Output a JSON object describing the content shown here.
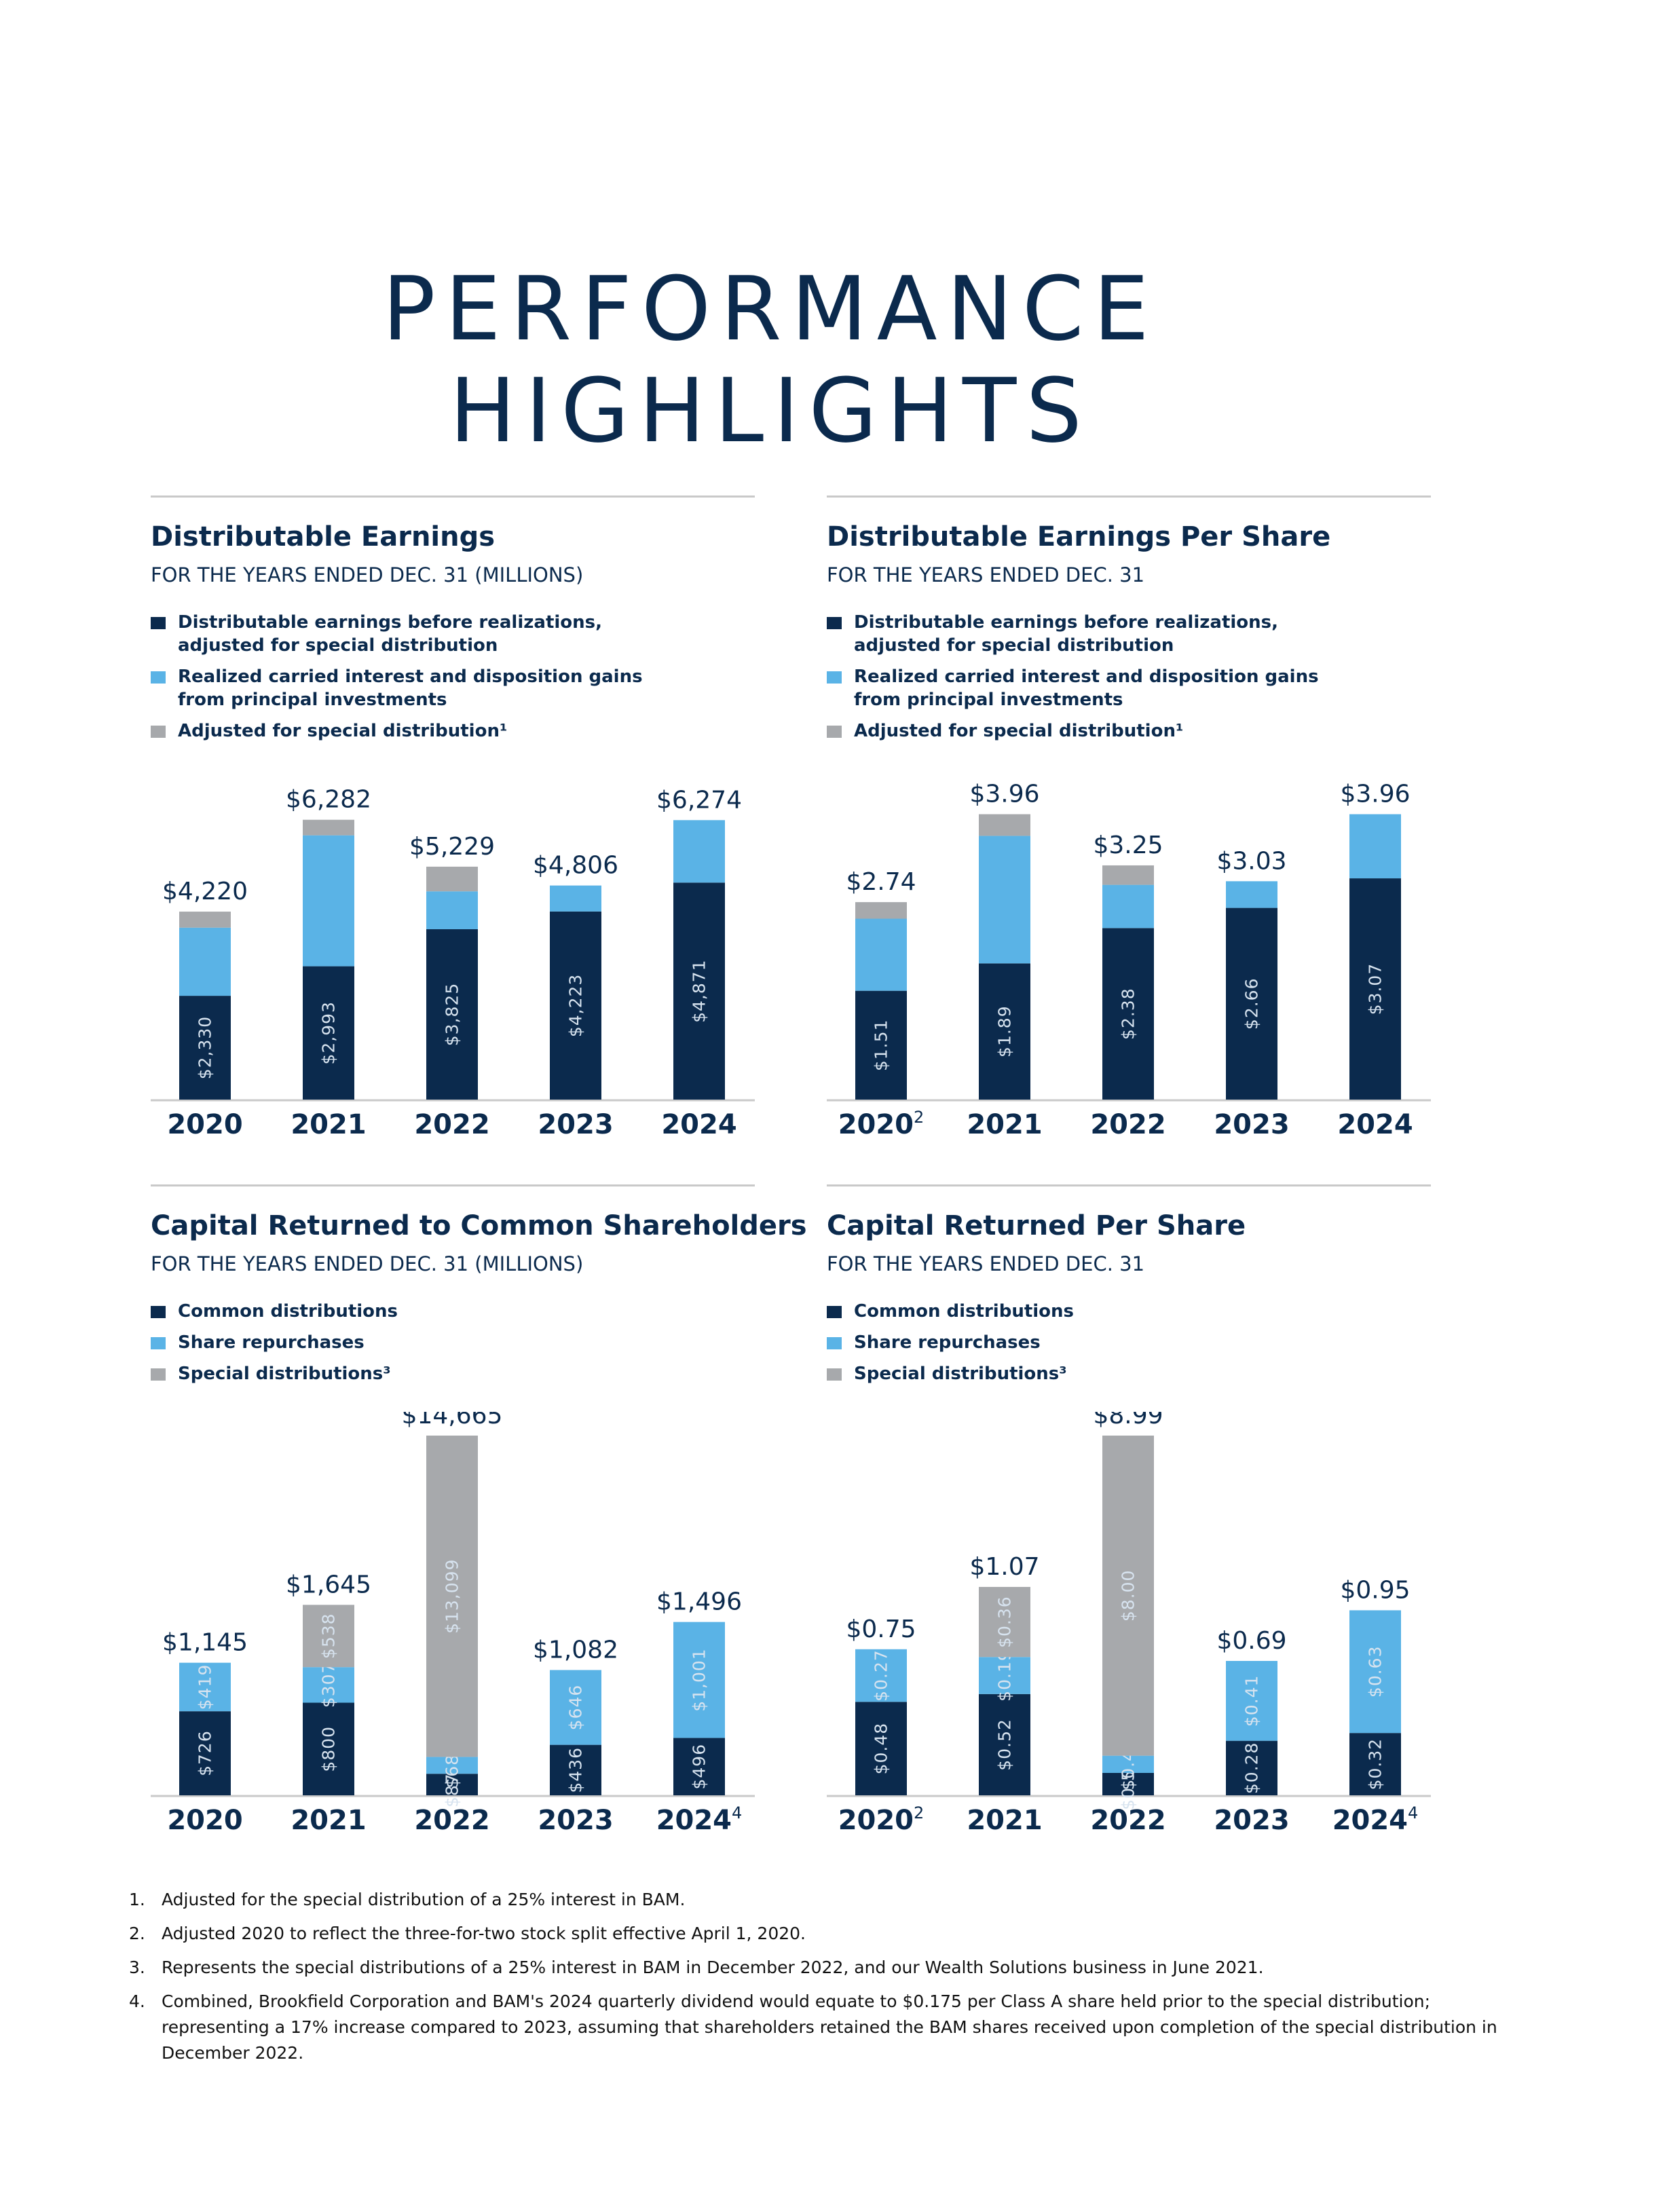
{
  "page": {
    "title_line1": "PERFORMANCE",
    "title_line2": "HIGHLIGHTS"
  },
  "colors": {
    "navy": "#0b2a4d",
    "light_blue": "#5ab3e6",
    "gray": "#a7a9ac",
    "rule": "#c9c9c9"
  },
  "chart_data": [
    {
      "type": "bar",
      "stacked": true,
      "title": "Distributable Earnings",
      "subtitle": "FOR THE YEARS ENDED DEC. 31 (MILLIONS)",
      "legend": [
        {
          "label": "Distributable earnings before realizations, adjusted for special distribution",
          "color": "#0b2a4d"
        },
        {
          "label": "Realized carried interest and disposition gains from principal investments",
          "color": "#5ab3e6"
        },
        {
          "label": "Adjusted for special distribution¹",
          "color": "#a7a9ac"
        }
      ],
      "categories": [
        "2020",
        "2021",
        "2022",
        "2023",
        "2024"
      ],
      "category_sup": [
        "",
        "",
        "",
        "",
        ""
      ],
      "series": [
        {
          "name": "Distributable earnings before realizations, adjusted for special distribution",
          "color": "#0b2a4d",
          "values": [
            2330,
            2993,
            3825,
            4223,
            4871
          ],
          "labels": [
            "$2,330",
            "$2,993",
            "$3,825",
            "$4,223",
            "$4,871"
          ]
        },
        {
          "name": "Realized carried interest and disposition gains from principal investments",
          "color": "#5ab3e6",
          "values": [
            1530,
            2940,
            850,
            583,
            1403
          ],
          "labels": [
            "",
            "",
            "",
            "",
            ""
          ]
        },
        {
          "name": "Adjusted for special distribution¹",
          "color": "#a7a9ac",
          "values": [
            360,
            349,
            554,
            0,
            0
          ],
          "labels": [
            "",
            "",
            "",
            "",
            ""
          ]
        }
      ],
      "totals": [
        "$4,220",
        "$6,282",
        "$5,229",
        "$4,806",
        "$6,274"
      ],
      "total_values": [
        4220,
        6282,
        5229,
        4806,
        6274
      ],
      "ylim": [
        0,
        6400
      ]
    },
    {
      "type": "bar",
      "stacked": true,
      "title": "Distributable Earnings Per Share",
      "subtitle": "FOR THE YEARS ENDED DEC. 31",
      "legend": [
        {
          "label": "Distributable earnings before realizations, adjusted for special distribution",
          "color": "#0b2a4d"
        },
        {
          "label": "Realized carried interest and disposition gains from principal investments",
          "color": "#5ab3e6"
        },
        {
          "label": "Adjusted for special distribution¹",
          "color": "#a7a9ac"
        }
      ],
      "categories": [
        "2020",
        "2021",
        "2022",
        "2023",
        "2024"
      ],
      "category_sup": [
        "2",
        "",
        "",
        "",
        ""
      ],
      "series": [
        {
          "name": "Distributable earnings before realizations, adjusted for special distribution",
          "color": "#0b2a4d",
          "values": [
            1.51,
            1.89,
            2.38,
            2.66,
            3.07
          ],
          "labels": [
            "$1.51",
            "$1.89",
            "$2.38",
            "$2.66",
            "$3.07"
          ]
        },
        {
          "name": "Realized carried interest and disposition gains from principal investments",
          "color": "#5ab3e6",
          "values": [
            1.0,
            1.77,
            0.6,
            0.37,
            0.89
          ],
          "labels": [
            "",
            "",
            "",
            "",
            ""
          ]
        },
        {
          "name": "Adjusted for special distribution¹",
          "color": "#a7a9ac",
          "values": [
            0.23,
            0.3,
            0.27,
            0,
            0
          ],
          "labels": [
            "",
            "",
            "",
            "",
            ""
          ]
        }
      ],
      "totals": [
        "$2.74",
        "$3.96",
        "$3.25",
        "$3.03",
        "$3.96"
      ],
      "total_values": [
        2.74,
        3.96,
        3.25,
        3.03,
        3.96
      ],
      "ylim": [
        0,
        4.05
      ]
    },
    {
      "type": "bar",
      "stacked": true,
      "title": "Capital Returned to Common Shareholders",
      "subtitle": "FOR THE YEARS ENDED DEC. 31 (MILLIONS)",
      "legend": [
        {
          "label": "Common distributions",
          "color": "#0b2a4d"
        },
        {
          "label": "Share repurchases",
          "color": "#5ab3e6"
        },
        {
          "label": "Special distributions³",
          "color": "#a7a9ac"
        }
      ],
      "categories": [
        "2020",
        "2021",
        "2022",
        "2023",
        "2024"
      ],
      "category_sup": [
        "",
        "",
        "",
        "",
        "4"
      ],
      "series": [
        {
          "name": "Common distributions",
          "color": "#0b2a4d",
          "values": [
            726,
            800,
            879,
            436,
            496
          ],
          "labels": [
            "$726",
            "$800",
            "$879",
            "$436",
            "$496"
          ]
        },
        {
          "name": "Share repurchases",
          "color": "#5ab3e6",
          "values": [
            419,
            307,
            687,
            646,
            1001
          ],
          "labels": [
            "$419",
            "$307",
            "$687",
            "$646",
            "$1,001"
          ]
        },
        {
          "name": "Special distributions³",
          "color": "#a7a9ac",
          "values": [
            0,
            538,
            13099,
            0,
            0
          ],
          "labels": [
            "",
            "$538",
            "$13,099",
            "",
            ""
          ]
        }
      ],
      "totals": [
        "$1,145",
        "$1,645",
        "$14,665",
        "$1,082",
        "$1,496"
      ],
      "total_values": [
        1145,
        1645,
        14665,
        1082,
        1496
      ],
      "scale_note": "broken axis",
      "ylim": [
        0,
        14665
      ]
    },
    {
      "type": "bar",
      "stacked": true,
      "title": "Capital Returned Per Share",
      "subtitle": "FOR THE YEARS ENDED DEC. 31",
      "legend": [
        {
          "label": "Common distributions",
          "color": "#0b2a4d"
        },
        {
          "label": "Share repurchases",
          "color": "#5ab3e6"
        },
        {
          "label": "Special distributions³",
          "color": "#a7a9ac"
        }
      ],
      "categories": [
        "2020",
        "2021",
        "2022",
        "2023",
        "2024"
      ],
      "category_sup": [
        "2",
        "",
        "",
        "",
        "4"
      ],
      "series": [
        {
          "name": "Common distributions",
          "color": "#0b2a4d",
          "values": [
            0.48,
            0.52,
            0.56,
            0.28,
            0.32
          ],
          "labels": [
            "$0.48",
            "$0.52",
            "$0.56",
            "$0.28",
            "$0.32"
          ]
        },
        {
          "name": "Share repurchases",
          "color": "#5ab3e6",
          "values": [
            0.27,
            0.19,
            0.43,
            0.41,
            0.63
          ],
          "labels": [
            "$0.27",
            "$0.19",
            "$0.43",
            "$0.41",
            "$0.63"
          ]
        },
        {
          "name": "Special distributions³",
          "color": "#a7a9ac",
          "values": [
            0,
            0.36,
            8.0,
            0,
            0
          ],
          "labels": [
            "",
            "$0.36",
            "$8.00",
            "",
            ""
          ]
        }
      ],
      "totals": [
        "$0.75",
        "$1.07",
        "$8.99",
        "$0.69",
        "$0.95"
      ],
      "total_values": [
        0.75,
        1.07,
        8.99,
        0.69,
        0.95
      ],
      "scale_note": "broken axis",
      "ylim": [
        0,
        8.99
      ]
    }
  ],
  "footnotes": [
    {
      "num": "1.",
      "text": "Adjusted for the special distribution of a 25% interest in BAM."
    },
    {
      "num": "2.",
      "text": "Adjusted 2020 to reflect the three-for-two stock split effective April 1, 2020."
    },
    {
      "num": "3.",
      "text": "Represents the special distributions of a 25% interest in BAM in December 2022, and our Wealth Solutions business in June 2021."
    },
    {
      "num": "4.",
      "text": "Combined, Brookfield Corporation and BAM's 2024 quarterly dividend would equate to $0.175 per Class A share held prior to the special distribution; representing a 17% increase compared to 2023, assuming that shareholders retained the BAM shares received upon completion of the special distribution in December 2022."
    }
  ]
}
